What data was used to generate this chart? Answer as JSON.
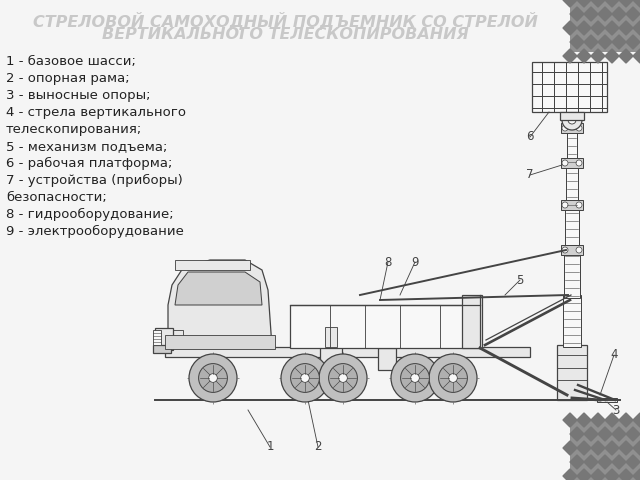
{
  "title_line1": "СТРЕЛОВОЙ САМОХОДНЫЙ ПОДЪЕМНИК СО СТРЕЛОЙ",
  "title_line2": "ВЕРТИКАЛЬНОГО ТЕЛЕСКОПИРОВАНИЯ",
  "title_color": "#c8c8c8",
  "title_fontsize": 11.5,
  "bg_color": "#f5f5f5",
  "legend_lines": [
    "1 - базовое шасси;",
    "2 - опорная рама;",
    "3 - выносные опоры;",
    "4 - стрела вертикального",
    "телескопирования;",
    "5 - механизм подъема;",
    "6 - рабочая платформа;",
    "7 - устройства (приборы)",
    "безопасности;",
    "8 - гидрооборудование;",
    "9 - электрооборудование"
  ],
  "legend_fontsize": 9.5,
  "draw_color": "#444444",
  "fill_light": "#e8e8e8",
  "fill_white": "#f8f8f8",
  "corner_color": "#909090",
  "line_width": 0.9
}
